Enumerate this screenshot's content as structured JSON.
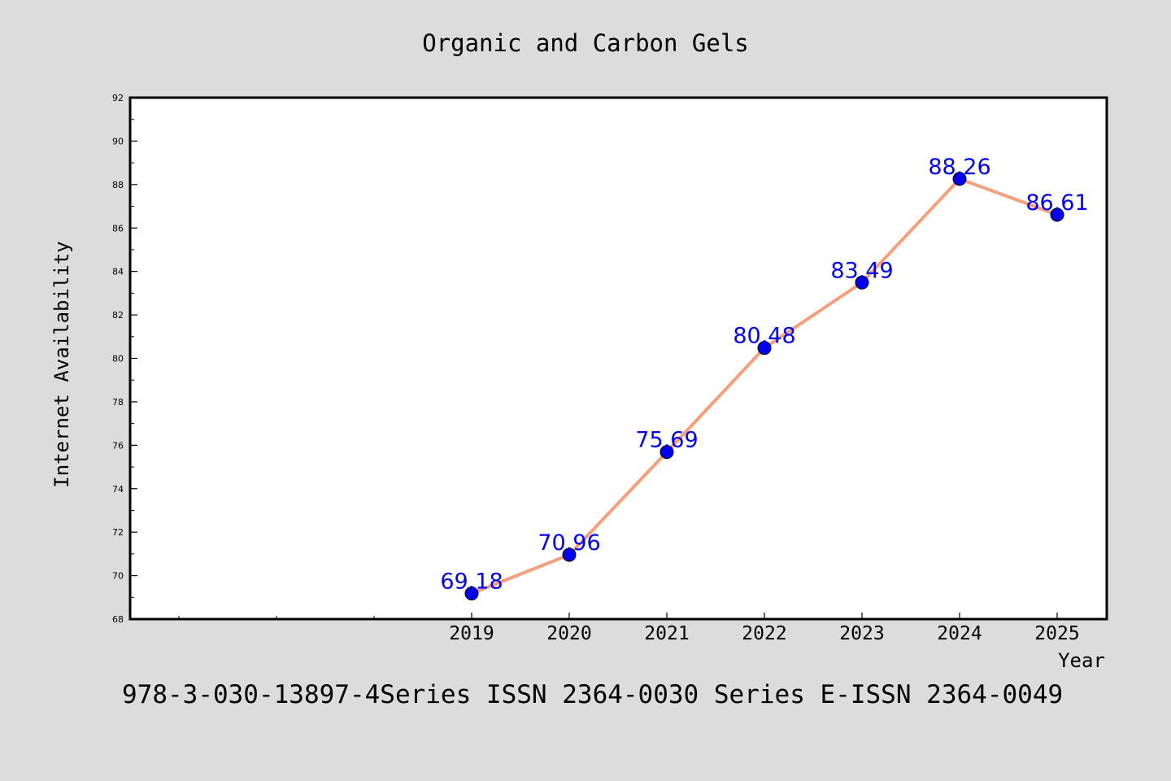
{
  "chart_data": {
    "type": "line",
    "title": "Organic and Carbon Gels",
    "xlabel": "Year",
    "ylabel": "Internet Availability",
    "x": [
      "2019",
      "2020",
      "2021",
      "2022",
      "2023",
      "2024",
      "2025"
    ],
    "values": [
      69.18,
      70.96,
      75.69,
      80.48,
      83.49,
      88.26,
      86.61
    ],
    "data_labels": [
      "69.18",
      "70.96",
      "75.69",
      "80.48",
      "83.49",
      "88.26",
      "86.61"
    ],
    "ylim": [
      68,
      92
    ],
    "yticks": [
      "68",
      "70",
      "72",
      "74",
      "76",
      "78",
      "80",
      "82",
      "84",
      "86",
      "88",
      "90",
      "92"
    ],
    "grid": false,
    "line_color": "#f4a07e",
    "marker_color": "#0000ee",
    "label_color": "#0000ee"
  },
  "footer": {
    "text": "978-3-030-13897-4Series ISSN 2364-0030 Series E-ISSN 2364-0049"
  }
}
